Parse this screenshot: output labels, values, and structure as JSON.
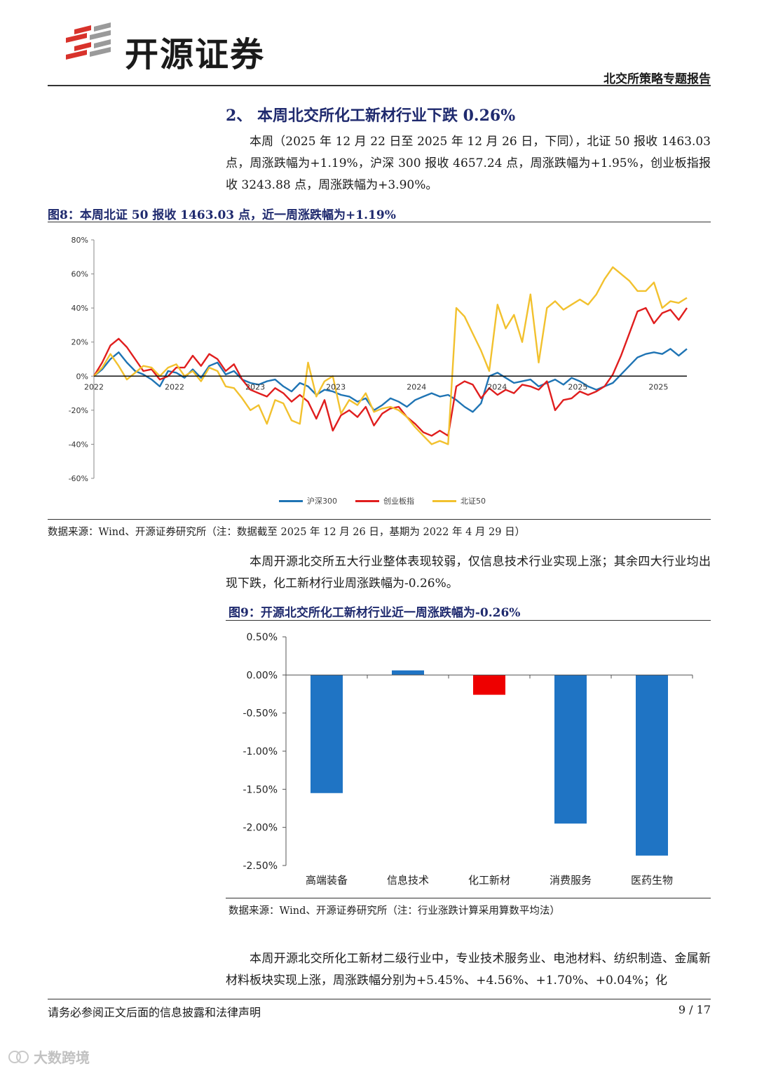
{
  "header": {
    "brand": "开源证券",
    "report_name": "北交所策略专题报告"
  },
  "section": {
    "title": "2、 本周北交所化工新材行业下跌 0.26%"
  },
  "paragraphs": {
    "p1": "本周（2025 年 12 月 22 日至 2025 年 12 月 26 日，下同），北证 50 报收 1463.03 点，周涨跌幅为+1.19%，沪深 300 报收 4657.24 点，周涨跌幅为+1.95%，创业板指报收 3243.88 点，周涨跌幅为+3.90%。",
    "p2": "本周开源北交所五大行业整体表现较弱，仅信息技术行业实现上涨；其余四大行业均出现下跌，化工新材行业周涨跌幅为-0.26%。",
    "p3": "本周开源北交所化工新材二级行业中，专业技术服务业、电池材料、纺织制造、金属新材料板块实现上涨，周涨跌幅分别为+5.45%、+4.56%、+1.70%、+0.04%；化"
  },
  "figure8": {
    "title": "图8：本周北证 50 报收 1463.03 点，近一周涨跌幅为+1.19%",
    "source": "数据来源：Wind、开源证券研究所（注：数据截至 2025 年 12 月 26 日，基期为 2022 年 4 月 29 日）"
  },
  "figure9": {
    "title": "图9：开源北交所化工新材行业近一周涨跌幅为-0.26%",
    "source": "数据来源：Wind、开源证券研究所（注：行业涨跌计算采用算数平均法）"
  },
  "footer": {
    "disclaimer": "请务必参阅正文后面的信息披露和法律声明",
    "page": "9 / 17"
  },
  "watermark": "大数跨境",
  "chart_data": [
    {
      "type": "line",
      "y_ticks": [
        "80%",
        "60%",
        "40%",
        "20%",
        "0%",
        "-20%",
        "-40%",
        "-60%"
      ],
      "ylim": [
        -60,
        80
      ],
      "x_tick_labels": [
        "2022",
        "2022",
        "2023",
        "2023",
        "2024",
        "2024",
        "2025",
        "2025"
      ],
      "legend_placement": "bottom",
      "series": [
        {
          "name": "沪深300",
          "color": "#1f74b4",
          "values": [
            0,
            4,
            10,
            14,
            8,
            3,
            1,
            -2,
            -6,
            3,
            2,
            -1,
            4,
            -1,
            6,
            8,
            1,
            3,
            -2,
            -4,
            -5,
            -3,
            -2,
            -6,
            -9,
            -4,
            -6,
            -11,
            -8,
            -9,
            -11,
            -12,
            -15,
            -13,
            -20,
            -17,
            -13,
            -15,
            -18,
            -14,
            -12,
            -10,
            -12,
            -11,
            -14,
            -18,
            -21,
            -16,
            0,
            2,
            -1,
            -4,
            -3,
            -2,
            -6,
            -4,
            -2,
            -5,
            -1,
            -3,
            -6,
            -8,
            -6,
            -4,
            1,
            6,
            11,
            13,
            14,
            13,
            16,
            12,
            16
          ]
        },
        {
          "name": "创业板指",
          "color": "#e01e1e",
          "values": [
            0,
            8,
            18,
            22,
            17,
            10,
            3,
            4,
            -2,
            0,
            5,
            5,
            12,
            6,
            13,
            10,
            3,
            7,
            -2,
            -8,
            -10,
            -12,
            -7,
            -10,
            -15,
            -11,
            -15,
            -25,
            -14,
            -32,
            -23,
            -20,
            -24,
            -18,
            -29,
            -22,
            -19,
            -18,
            -24,
            -28,
            -33,
            -35,
            -32,
            -35,
            -6,
            -3,
            -5,
            -13,
            -7,
            -11,
            -8,
            -10,
            -5,
            -6,
            -8,
            -3,
            -20,
            -14,
            -13,
            -9,
            -11,
            -9,
            -6,
            1,
            12,
            25,
            38,
            40,
            31,
            37,
            39,
            33,
            40
          ]
        },
        {
          "name": "北证50",
          "color": "#f2c12e",
          "values": [
            0,
            5,
            13,
            6,
            -2,
            2,
            6,
            5,
            0,
            5,
            7,
            0,
            3,
            -3,
            5,
            3,
            -6,
            -7,
            -13,
            -20,
            -17,
            -28,
            -14,
            -16,
            -26,
            -28,
            8,
            -12,
            -3,
            0,
            -22,
            -14,
            -17,
            -10,
            -21,
            -19,
            -18,
            -20,
            -24,
            -30,
            -35,
            -40,
            -38,
            -40,
            40,
            35,
            25,
            15,
            3,
            42,
            28,
            36,
            20,
            48,
            8,
            40,
            44,
            39,
            42,
            45,
            42,
            48,
            57,
            64,
            60,
            56,
            50,
            50,
            55,
            40,
            44,
            43,
            46
          ]
        }
      ]
    },
    {
      "type": "bar",
      "categories": [
        "高端装备",
        "信息技术",
        "化工新材",
        "消费服务",
        "医药生物"
      ],
      "values": [
        -1.55,
        0.06,
        -0.26,
        -1.95,
        -2.37
      ],
      "y_ticks": [
        "0.50%",
        "0.00%",
        "-0.50%",
        "-1.00%",
        "-1.50%",
        "-2.00%",
        "-2.50%"
      ],
      "ylim": [
        -2.5,
        0.5
      ],
      "colors": {
        "positive": "#1f74c4",
        "negative": "#1f74c4",
        "highlight": "#ee0000"
      },
      "highlight_category": "化工新材"
    }
  ]
}
